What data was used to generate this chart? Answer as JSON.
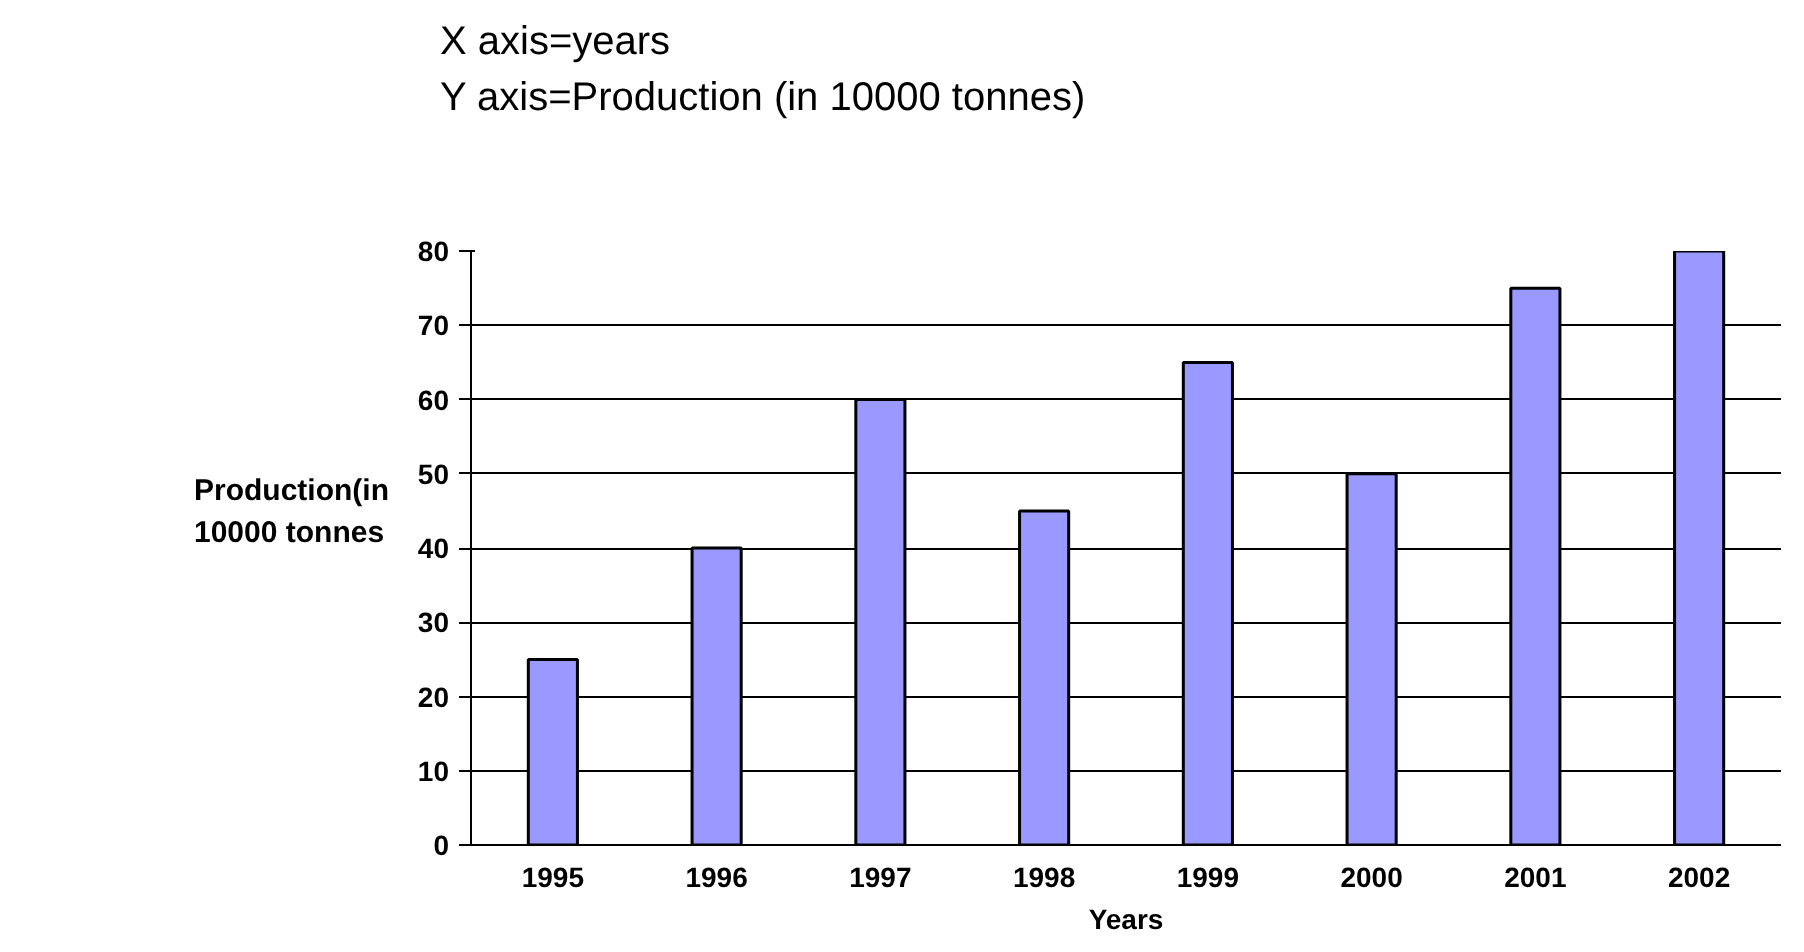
{
  "chart_data": {
    "type": "bar",
    "annotations": [
      "X axis=years",
      "Y axis=Production (in 10000 tonnes)"
    ],
    "xlabel": "Years",
    "ylabel": "Production(in\n10000 tonnes",
    "categories": [
      "1995",
      "1996",
      "1997",
      "1998",
      "1999",
      "2000",
      "2001",
      "2002"
    ],
    "values": [
      25,
      40,
      60,
      45,
      65,
      50,
      75,
      80
    ],
    "color": "#9999ff",
    "ylim": [
      0,
      80
    ],
    "yticks": [
      0,
      10,
      20,
      30,
      40,
      50,
      60,
      70,
      80
    ],
    "grid": "y"
  }
}
